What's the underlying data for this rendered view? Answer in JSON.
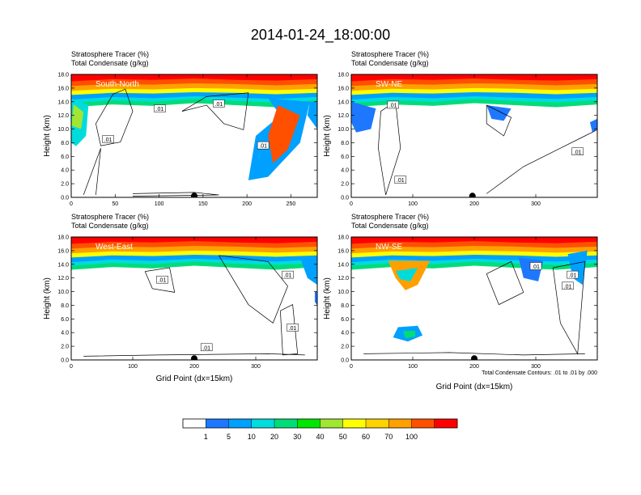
{
  "title": "2014-01-24_18:00:00",
  "colorbar": {
    "labels": [
      "1",
      "5",
      "10",
      "20",
      "30",
      "40",
      "50",
      "60",
      "70",
      "100"
    ],
    "colors": [
      "#ffffff",
      "#1e78ff",
      "#00a0ff",
      "#00dcdc",
      "#00dc78",
      "#00e600",
      "#a0e632",
      "#ffff00",
      "#ffd200",
      "#ffa000",
      "#ff5000",
      "#ff0000"
    ]
  },
  "contour_note": "Total Condensate Contours: .01 to .01 by .000",
  "chart_data": [
    {
      "type": "heatmap",
      "region": "South-North",
      "line1": "Stratosphere Tracer   (%)",
      "line2": "Total Condensate   (g/kg)",
      "ylabel": "Height (km)",
      "xlabel": "",
      "xlim": [
        0,
        280
      ],
      "ylim": [
        0,
        18
      ],
      "xticks": [
        "0",
        "50",
        "100",
        "150",
        "200",
        "250"
      ],
      "yticks": [
        "0.0",
        "2.0",
        "4.0",
        "6.0",
        "8.0",
        "10.0",
        "12.0",
        "14.0",
        "16.0",
        "18.0"
      ],
      "contour_labels": [
        ".01",
        ".01",
        ".01",
        ".01"
      ],
      "marker_x": 140
    },
    {
      "type": "heatmap",
      "region": "SW-NE",
      "line1": "Stratosphere Tracer   (%)",
      "line2": "Total Condensate   (g/kg)",
      "ylabel": "Height (km)",
      "xlabel": "",
      "xlim": [
        0,
        400
      ],
      "ylim": [
        0,
        18
      ],
      "xticks": [
        "0",
        "100",
        "200",
        "300"
      ],
      "yticks": [
        "0.0",
        "2.0",
        "4.0",
        "6.0",
        "8.0",
        "10.0",
        "12.0",
        "14.0",
        "16.0",
        "18.0"
      ],
      "contour_labels": [
        ".01",
        ".01",
        ".01"
      ],
      "marker_x": 197
    },
    {
      "type": "heatmap",
      "region": "West-East",
      "line1": "Stratosphere Tracer   (%)",
      "line2": "Total Condensate   (g/kg)",
      "ylabel": "Height (km)",
      "xlabel": "Grid Point (dx=15km)",
      "xlim": [
        0,
        400
      ],
      "ylim": [
        0,
        18
      ],
      "xticks": [
        "0",
        "100",
        "200",
        "300"
      ],
      "yticks": [
        "0.0",
        "2.0",
        "4.0",
        "6.0",
        "8.0",
        "10.0",
        "12.0",
        "14.0",
        "16.0",
        "18.0"
      ],
      "contour_labels": [
        ".01",
        ".01",
        ".01",
        ".01"
      ],
      "marker_x": 200
    },
    {
      "type": "heatmap",
      "region": "NW-SE",
      "line1": "Stratosphere Tracer   (%)",
      "line2": "Total Condensate   (g/kg)",
      "ylabel": "Height (km)",
      "xlabel": "Grid Point (dx=15km)",
      "xlim": [
        0,
        400
      ],
      "ylim": [
        0,
        18
      ],
      "xticks": [
        "0",
        "100",
        "200",
        "300"
      ],
      "yticks": [
        "0.0",
        "2.0",
        "4.0",
        "6.0",
        "8.0",
        "10.0",
        "12.0",
        "14.0",
        "16.0",
        "18.0"
      ],
      "contour_labels": [
        ".01",
        ".01",
        ".01"
      ],
      "marker_x": 200
    }
  ]
}
